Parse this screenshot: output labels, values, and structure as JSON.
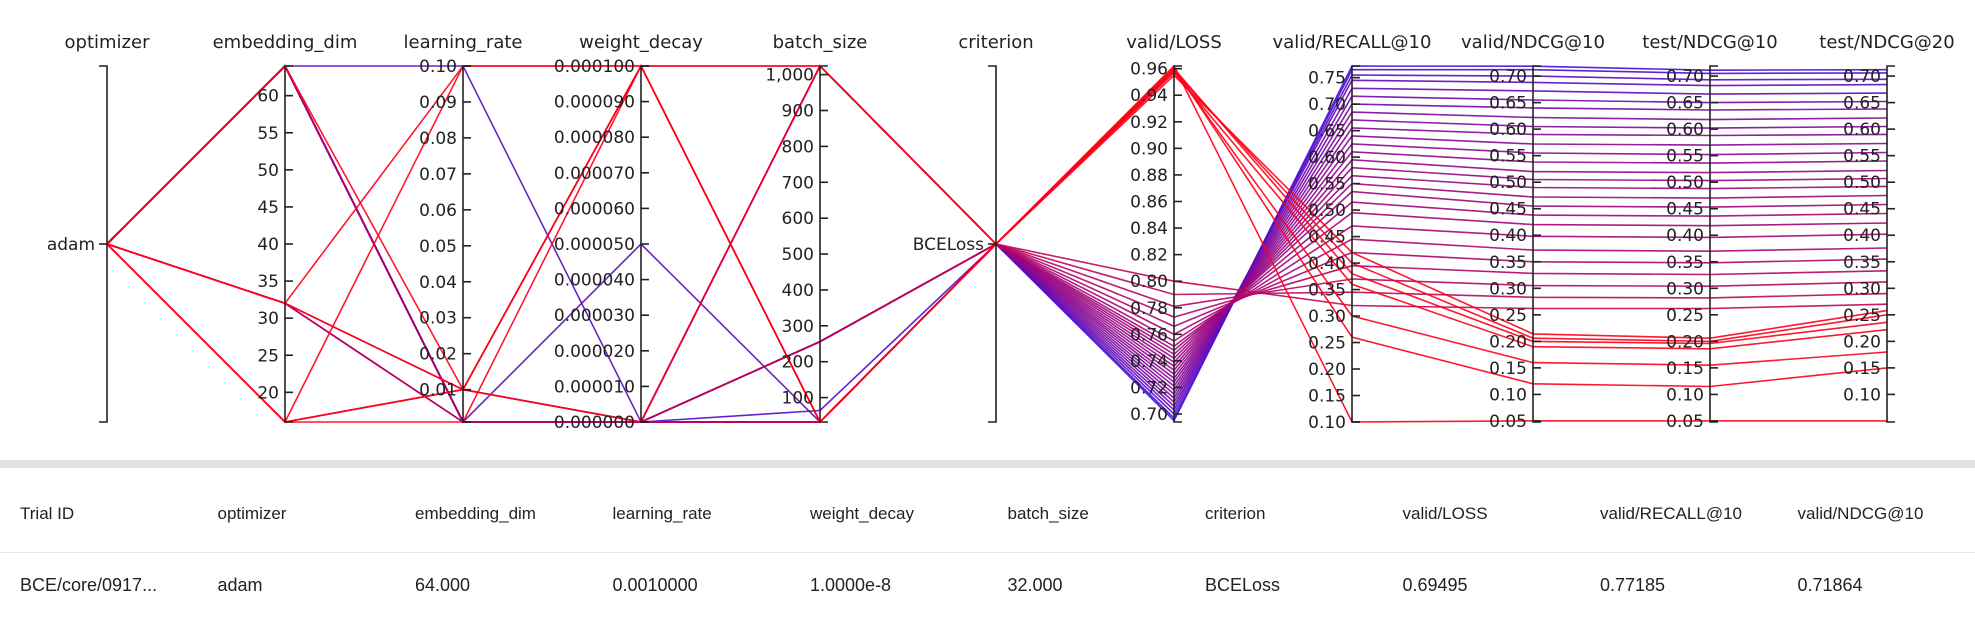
{
  "chart_data": {
    "type": "parallel_coordinates",
    "colors": {
      "low": "#1f0fff",
      "high": "#ff0016"
    },
    "axes": [
      {
        "name": "optimizer",
        "kind": "categorical",
        "categories": [
          "adam"
        ],
        "tick_labels": [
          "adam"
        ]
      },
      {
        "name": "embedding_dim",
        "kind": "numeric",
        "range": [
          16,
          64
        ],
        "ticks": [
          20,
          25,
          30,
          35,
          40,
          45,
          50,
          55,
          60
        ],
        "tick_labels": [
          "20",
          "25",
          "30",
          "35",
          "40",
          "45",
          "50",
          "55",
          "60"
        ]
      },
      {
        "name": "learning_rate",
        "kind": "numeric",
        "range": [
          0.001,
          0.1
        ],
        "ticks": [
          0.01,
          0.02,
          0.03,
          0.04,
          0.05,
          0.06,
          0.07,
          0.08,
          0.09,
          0.1
        ],
        "tick_labels": [
          "0.01",
          "0.02",
          "0.03",
          "0.04",
          "0.05",
          "0.06",
          "0.07",
          "0.08",
          "0.09",
          "0.10"
        ]
      },
      {
        "name": "weight_decay",
        "kind": "numeric",
        "range": [
          0,
          0.0001
        ],
        "ticks": [
          0,
          1e-05,
          2e-05,
          3e-05,
          4e-05,
          5e-05,
          6e-05,
          7e-05,
          8e-05,
          9e-05,
          0.0001
        ],
        "tick_labels": [
          "0.000000",
          "0.000010",
          "0.000020",
          "0.000030",
          "0.000040",
          "0.000050",
          "0.000060",
          "0.000070",
          "0.000080",
          "0.000090",
          "0.000100"
        ]
      },
      {
        "name": "batch_size",
        "kind": "numeric",
        "range": [
          32,
          1024
        ],
        "ticks": [
          100,
          200,
          300,
          400,
          500,
          600,
          700,
          800,
          900,
          1000
        ],
        "tick_labels": [
          "100",
          "200",
          "300",
          "400",
          "500",
          "600",
          "700",
          "800",
          "900",
          "1,000"
        ]
      },
      {
        "name": "criterion",
        "kind": "categorical",
        "categories": [
          "BCELoss"
        ],
        "tick_labels": [
          "BCELoss"
        ]
      },
      {
        "name": "valid/LOSS",
        "kind": "numeric",
        "range": [
          0.694,
          0.962
        ],
        "ticks": [
          0.7,
          0.72,
          0.74,
          0.76,
          0.78,
          0.8,
          0.82,
          0.84,
          0.86,
          0.88,
          0.9,
          0.92,
          0.94,
          0.96
        ],
        "tick_labels": [
          "0.70",
          "0.72",
          "0.74",
          "0.76",
          "0.78",
          "0.80",
          "0.82",
          "0.84",
          "0.86",
          "0.88",
          "0.90",
          "0.92",
          "0.94",
          "0.96"
        ]
      },
      {
        "name": "valid/RECALL@10",
        "kind": "numeric",
        "range": [
          0.1,
          0.772
        ],
        "ticks": [
          0.1,
          0.15,
          0.2,
          0.25,
          0.3,
          0.35,
          0.4,
          0.45,
          0.5,
          0.55,
          0.6,
          0.65,
          0.7,
          0.75
        ],
        "tick_labels": [
          "0.10",
          "0.15",
          "0.20",
          "0.25",
          "0.30",
          "0.35",
          "0.40",
          "0.45",
          "0.50",
          "0.55",
          "0.60",
          "0.65",
          "0.70",
          "0.75"
        ]
      },
      {
        "name": "valid/NDCG@10",
        "kind": "numeric",
        "range": [
          0.048,
          0.719
        ],
        "ticks": [
          0.05,
          0.1,
          0.15,
          0.2,
          0.25,
          0.3,
          0.35,
          0.4,
          0.45,
          0.5,
          0.55,
          0.6,
          0.65,
          0.7
        ],
        "tick_labels": [
          "0.05",
          "0.10",
          "0.15",
          "0.20",
          "0.25",
          "0.30",
          "0.35",
          "0.40",
          "0.45",
          "0.50",
          "0.55",
          "0.60",
          "0.65",
          "0.70"
        ]
      },
      {
        "name": "test/NDCG@10",
        "kind": "numeric",
        "range": [
          0.048,
          0.719
        ],
        "ticks": [
          0.05,
          0.1,
          0.15,
          0.2,
          0.25,
          0.3,
          0.35,
          0.4,
          0.45,
          0.5,
          0.55,
          0.6,
          0.65,
          0.7
        ],
        "tick_labels": [
          "0.05",
          "0.10",
          "0.15",
          "0.20",
          "0.25",
          "0.30",
          "0.35",
          "0.40",
          "0.45",
          "0.50",
          "0.55",
          "0.60",
          "0.65",
          "0.70"
        ]
      },
      {
        "name": "test/NDCG@20",
        "kind": "numeric",
        "range": [
          0.048,
          0.719
        ],
        "ticks": [
          0.1,
          0.15,
          0.2,
          0.25,
          0.3,
          0.35,
          0.4,
          0.45,
          0.5,
          0.55,
          0.6,
          0.65,
          0.7
        ],
        "tick_labels": [
          "0.10",
          "0.15",
          "0.20",
          "0.25",
          "0.30",
          "0.35",
          "0.40",
          "0.45",
          "0.50",
          "0.55",
          "0.60",
          "0.65",
          "0.70"
        ]
      }
    ],
    "trials": [
      {
        "emb": 64,
        "lr": 0.001,
        "wd": 1e-08,
        "bs": 32,
        "loss": 0.69495,
        "recall": 0.7718,
        "ndcg10": 0.7186,
        "tndcg10": 0.711,
        "tndcg20": 0.712
      },
      {
        "emb": 64,
        "lr": 0.001,
        "wd": 1e-08,
        "bs": 64,
        "loss": 0.697,
        "recall": 0.765,
        "ndcg10": 0.712,
        "tndcg10": 0.705,
        "tndcg20": 0.706
      },
      {
        "emb": 64,
        "lr": 0.1,
        "wd": 1e-08,
        "bs": 32,
        "loss": 0.7,
        "recall": 0.755,
        "ndcg10": 0.7,
        "tndcg10": 0.693,
        "tndcg20": 0.694
      },
      {
        "emb": 64,
        "lr": 0.001,
        "wd": 5e-05,
        "bs": 32,
        "loss": 0.703,
        "recall": 0.745,
        "ndcg10": 0.688,
        "tndcg10": 0.682,
        "tndcg20": 0.684
      },
      {
        "emb": 64,
        "lr": 0.001,
        "wd": 1e-08,
        "bs": 256,
        "loss": 0.706,
        "recall": 0.73,
        "ndcg10": 0.672,
        "tndcg10": 0.666,
        "tndcg20": 0.668
      },
      {
        "emb": 64,
        "lr": 0.001,
        "wd": 1e-08,
        "bs": 1024,
        "loss": 0.709,
        "recall": 0.715,
        "ndcg10": 0.655,
        "tndcg10": 0.65,
        "tndcg20": 0.652
      },
      {
        "emb": 64,
        "lr": 0.001,
        "wd": 1e-08,
        "bs": 32,
        "loss": 0.712,
        "recall": 0.7,
        "ndcg10": 0.64,
        "tndcg10": 0.636,
        "tndcg20": 0.638
      },
      {
        "emb": 64,
        "lr": 0.001,
        "wd": 1e-08,
        "bs": 256,
        "loss": 0.715,
        "recall": 0.685,
        "ndcg10": 0.622,
        "tndcg10": 0.618,
        "tndcg20": 0.621
      },
      {
        "emb": 64,
        "lr": 0.001,
        "wd": 1e-08,
        "bs": 1024,
        "loss": 0.718,
        "recall": 0.67,
        "ndcg10": 0.605,
        "tndcg10": 0.602,
        "tndcg20": 0.605
      },
      {
        "emb": 64,
        "lr": 0.001,
        "wd": 1e-08,
        "bs": 32,
        "loss": 0.721,
        "recall": 0.655,
        "ndcg10": 0.59,
        "tndcg10": 0.588,
        "tndcg20": 0.59
      },
      {
        "emb": 64,
        "lr": 0.001,
        "wd": 1e-08,
        "bs": 256,
        "loss": 0.724,
        "recall": 0.64,
        "ndcg10": 0.572,
        "tndcg10": 0.57,
        "tndcg20": 0.573
      },
      {
        "emb": 64,
        "lr": 0.001,
        "wd": 1e-08,
        "bs": 1024,
        "loss": 0.727,
        "recall": 0.625,
        "ndcg10": 0.555,
        "tndcg10": 0.552,
        "tndcg20": 0.556
      },
      {
        "emb": 64,
        "lr": 0.001,
        "wd": 1e-08,
        "bs": 32,
        "loss": 0.73,
        "recall": 0.61,
        "ndcg10": 0.538,
        "tndcg10": 0.536,
        "tndcg20": 0.54
      },
      {
        "emb": 64,
        "lr": 0.001,
        "wd": 1e-08,
        "bs": 256,
        "loss": 0.733,
        "recall": 0.595,
        "ndcg10": 0.52,
        "tndcg10": 0.518,
        "tndcg20": 0.522
      },
      {
        "emb": 64,
        "lr": 0.001,
        "wd": 1e-08,
        "bs": 1024,
        "loss": 0.736,
        "recall": 0.58,
        "ndcg10": 0.505,
        "tndcg10": 0.503,
        "tndcg20": 0.507
      },
      {
        "emb": 64,
        "lr": 0.001,
        "wd": 1e-08,
        "bs": 32,
        "loss": 0.739,
        "recall": 0.565,
        "ndcg10": 0.49,
        "tndcg10": 0.488,
        "tndcg20": 0.492
      },
      {
        "emb": 64,
        "lr": 0.001,
        "wd": 1e-08,
        "bs": 256,
        "loss": 0.742,
        "recall": 0.55,
        "ndcg10": 0.472,
        "tndcg10": 0.47,
        "tndcg20": 0.475
      },
      {
        "emb": 64,
        "lr": 0.001,
        "wd": 1e-08,
        "bs": 1024,
        "loss": 0.745,
        "recall": 0.535,
        "ndcg10": 0.455,
        "tndcg10": 0.453,
        "tndcg20": 0.458
      },
      {
        "emb": 64,
        "lr": 0.001,
        "wd": 1e-08,
        "bs": 32,
        "loss": 0.748,
        "recall": 0.515,
        "ndcg10": 0.438,
        "tndcg10": 0.436,
        "tndcg20": 0.441
      },
      {
        "emb": 64,
        "lr": 0.001,
        "wd": 1e-08,
        "bs": 256,
        "loss": 0.751,
        "recall": 0.495,
        "ndcg10": 0.42,
        "tndcg10": 0.418,
        "tndcg20": 0.423
      },
      {
        "emb": 64,
        "lr": 0.001,
        "wd": 1e-08,
        "bs": 32,
        "loss": 0.755,
        "recall": 0.47,
        "ndcg10": 0.398,
        "tndcg10": 0.396,
        "tndcg20": 0.402
      },
      {
        "emb": 64,
        "lr": 0.001,
        "wd": 1e-08,
        "bs": 256,
        "loss": 0.76,
        "recall": 0.445,
        "ndcg10": 0.372,
        "tndcg10": 0.37,
        "tndcg20": 0.376
      },
      {
        "emb": 32,
        "lr": 0.001,
        "wd": 1e-08,
        "bs": 32,
        "loss": 0.766,
        "recall": 0.42,
        "ndcg10": 0.35,
        "tndcg10": 0.348,
        "tndcg20": 0.355
      },
      {
        "emb": 32,
        "lr": 0.001,
        "wd": 1e-08,
        "bs": 256,
        "loss": 0.773,
        "recall": 0.395,
        "ndcg10": 0.328,
        "tndcg10": 0.326,
        "tndcg20": 0.333
      },
      {
        "emb": 32,
        "lr": 0.001,
        "wd": 1e-08,
        "bs": 32,
        "loss": 0.781,
        "recall": 0.37,
        "ndcg10": 0.305,
        "tndcg10": 0.304,
        "tndcg20": 0.312
      },
      {
        "emb": 32,
        "lr": 0.01,
        "wd": 1e-08,
        "bs": 256,
        "loss": 0.79,
        "recall": 0.345,
        "ndcg10": 0.283,
        "tndcg10": 0.282,
        "tndcg20": 0.29
      },
      {
        "emb": 16,
        "lr": 0.01,
        "wd": 1e-08,
        "bs": 32,
        "loss": 0.8,
        "recall": 0.32,
        "ndcg10": 0.262,
        "tndcg10": 0.262,
        "tndcg20": 0.27
      },
      {
        "emb": 16,
        "lr": 0.01,
        "wd": 1e-08,
        "bs": 1024,
        "loss": 0.955,
        "recall": 0.42,
        "ndcg10": 0.214,
        "tndcg10": 0.206,
        "tndcg20": 0.258
      },
      {
        "emb": 16,
        "lr": 0.1,
        "wd": 0.0001,
        "bs": 32,
        "loss": 0.958,
        "recall": 0.4,
        "ndcg10": 0.206,
        "tndcg10": 0.2,
        "tndcg20": 0.25
      },
      {
        "emb": 32,
        "lr": 0.01,
        "wd": 0.0001,
        "bs": 32,
        "loss": 0.96,
        "recall": 0.38,
        "ndcg10": 0.2,
        "tndcg10": 0.196,
        "tndcg20": 0.236
      },
      {
        "emb": 64,
        "lr": 0.01,
        "wd": 0.0001,
        "bs": 1024,
        "loss": 0.957,
        "recall": 0.36,
        "ndcg10": 0.19,
        "tndcg10": 0.186,
        "tndcg20": 0.222
      },
      {
        "emb": 16,
        "lr": 0.001,
        "wd": 0.0001,
        "bs": 32,
        "loss": 0.959,
        "recall": 0.3,
        "ndcg10": 0.16,
        "tndcg10": 0.155,
        "tndcg20": 0.18
      },
      {
        "emb": 32,
        "lr": 0.1,
        "wd": 0.0001,
        "bs": 1024,
        "loss": 0.961,
        "recall": 0.26,
        "ndcg10": 0.12,
        "tndcg10": 0.115,
        "tndcg20": 0.15
      },
      {
        "emb": 16,
        "lr": 0.01,
        "wd": 0.0001,
        "bs": 32,
        "loss": 0.962,
        "recall": 0.1,
        "ndcg10": 0.05,
        "tndcg10": 0.05,
        "tndcg20": 0.05
      }
    ]
  },
  "table": {
    "headers": [
      "Trial ID",
      "optimizer",
      "embedding_dim",
      "learning_rate",
      "weight_decay",
      "batch_size",
      "criterion",
      "valid/LOSS",
      "valid/RECALL@10",
      "valid/NDCG@10"
    ],
    "rows": [
      [
        "BCE/core/0917...",
        "adam",
        "64.000",
        "0.0010000",
        "1.0000e-8",
        "32.000",
        "BCELoss",
        "0.69495",
        "0.77185",
        "0.71864"
      ]
    ]
  }
}
